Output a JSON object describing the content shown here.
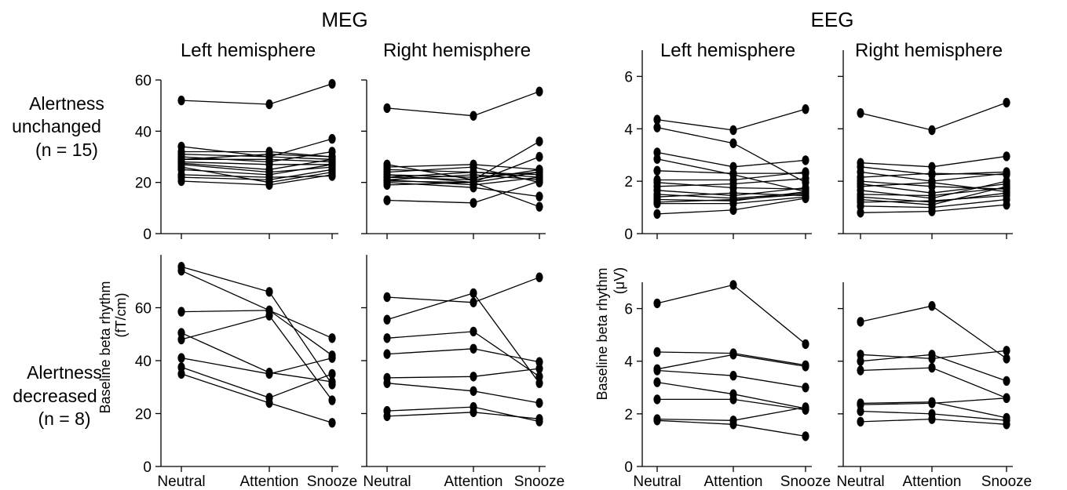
{
  "modalities": [
    {
      "label": "MEG",
      "ylabel": [
        "Baseline beta rhythm",
        "(fT/cm)"
      ]
    },
    {
      "label": "EEG",
      "ylabel": [
        "Baseline beta rhythm",
        "(μV)"
      ]
    }
  ],
  "hemispheres": [
    "Left hemisphere",
    "Right hemisphere"
  ],
  "groups": [
    {
      "lines": [
        "Alertness",
        "unchanged",
        "(n = 15)"
      ]
    },
    {
      "lines": [
        "Alertness",
        "decreased",
        "(n = 8)"
      ]
    }
  ],
  "conditions": [
    "Neutral",
    "Attention",
    "Snooze"
  ],
  "chart_data": [
    {
      "type": "line",
      "modality": "MEG",
      "hemisphere": "Left hemisphere",
      "group": "Alertness unchanged (n = 15)",
      "ylim": [
        0,
        60
      ],
      "yticks": [
        0,
        20,
        40,
        60
      ],
      "series": [
        {
          "values": [
            52,
            50.5,
            58.5
          ]
        },
        {
          "values": [
            34,
            30,
            37
          ]
        },
        {
          "values": [
            32,
            32,
            30
          ]
        },
        {
          "values": [
            31,
            30,
            29
          ]
        },
        {
          "values": [
            30,
            28,
            32
          ]
        },
        {
          "values": [
            29,
            31,
            30
          ]
        },
        {
          "values": [
            29,
            29,
            28
          ]
        },
        {
          "values": [
            28,
            27,
            27
          ]
        },
        {
          "values": [
            27.5,
            25,
            29
          ]
        },
        {
          "values": [
            27,
            24,
            26
          ]
        },
        {
          "values": [
            26,
            20,
            24
          ]
        },
        {
          "values": [
            25,
            23,
            27
          ]
        },
        {
          "values": [
            23,
            22,
            22.5
          ]
        },
        {
          "values": [
            22,
            21,
            25
          ]
        },
        {
          "values": [
            20.5,
            19,
            23
          ]
        }
      ]
    },
    {
      "type": "line",
      "modality": "MEG",
      "hemisphere": "Right hemisphere",
      "group": "Alertness unchanged (n = 15)",
      "ylim": [
        0,
        60
      ],
      "yticks": [
        0,
        20,
        40,
        60
      ],
      "series": [
        {
          "values": [
            49,
            46,
            55.5
          ]
        },
        {
          "values": [
            27,
            21,
            36
          ]
        },
        {
          "values": [
            26,
            27,
            25
          ]
        },
        {
          "values": [
            25,
            24,
            23
          ]
        },
        {
          "values": [
            24,
            26,
            20
          ]
        },
        {
          "values": [
            23,
            22,
            24
          ]
        },
        {
          "values": [
            23,
            20,
            30
          ]
        },
        {
          "values": [
            22,
            24,
            22
          ]
        },
        {
          "values": [
            22,
            21,
            25
          ]
        },
        {
          "values": [
            21,
            23,
            21
          ]
        },
        {
          "values": [
            21,
            19,
            22
          ]
        },
        {
          "values": [
            20.5,
            20,
            24
          ]
        },
        {
          "values": [
            20,
            18,
            14.5
          ]
        },
        {
          "values": [
            19,
            20,
            10.5
          ]
        },
        {
          "values": [
            13,
            12,
            20.5
          ]
        }
      ]
    },
    {
      "type": "line",
      "modality": "EEG",
      "hemisphere": "Left hemisphere",
      "group": "Alertness unchanged (n = 15)",
      "ylim": [
        0,
        7
      ],
      "yticks": [
        0,
        2,
        4,
        6
      ],
      "series": [
        {
          "values": [
            4.35,
            3.95,
            4.75
          ]
        },
        {
          "values": [
            4.05,
            3.45,
            1.95
          ]
        },
        {
          "values": [
            3.1,
            2.55,
            2.8
          ]
        },
        {
          "values": [
            2.85,
            2.25,
            1.6
          ]
        },
        {
          "values": [
            2.4,
            2.3,
            2.3
          ]
        },
        {
          "values": [
            2.05,
            2.05,
            2.35
          ]
        },
        {
          "values": [
            1.95,
            1.75,
            1.7
          ]
        },
        {
          "values": [
            1.8,
            1.9,
            2.1
          ]
        },
        {
          "values": [
            1.65,
            1.45,
            1.75
          ]
        },
        {
          "values": [
            1.5,
            1.35,
            1.55
          ]
        },
        {
          "values": [
            1.4,
            1.55,
            1.45
          ]
        },
        {
          "values": [
            1.3,
            1.25,
            1.6
          ]
        },
        {
          "values": [
            1.2,
            1.3,
            1.5
          ]
        },
        {
          "values": [
            1.15,
            1.15,
            1.4
          ]
        },
        {
          "values": [
            0.75,
            0.9,
            1.35
          ]
        }
      ]
    },
    {
      "type": "line",
      "modality": "EEG",
      "hemisphere": "Right hemisphere",
      "group": "Alertness unchanged (n = 15)",
      "ylim": [
        0,
        7
      ],
      "yticks": [
        0,
        2,
        4,
        6
      ],
      "series": [
        {
          "values": [
            4.6,
            3.95,
            5.0
          ]
        },
        {
          "values": [
            2.7,
            2.55,
            2.95
          ]
        },
        {
          "values": [
            2.55,
            2.25,
            2.35
          ]
        },
        {
          "values": [
            2.35,
            2.0,
            2.3
          ]
        },
        {
          "values": [
            2.15,
            2.3,
            2.25
          ]
        },
        {
          "values": [
            2.0,
            1.8,
            1.7
          ]
        },
        {
          "values": [
            1.9,
            1.55,
            1.9
          ]
        },
        {
          "values": [
            1.8,
            1.95,
            1.6
          ]
        },
        {
          "values": [
            1.65,
            1.35,
            2.0
          ]
        },
        {
          "values": [
            1.5,
            1.45,
            1.75
          ]
        },
        {
          "values": [
            1.4,
            1.2,
            1.55
          ]
        },
        {
          "values": [
            1.3,
            1.1,
            1.8
          ]
        },
        {
          "values": [
            1.2,
            1.25,
            1.45
          ]
        },
        {
          "values": [
            1.05,
            1.0,
            1.3
          ]
        },
        {
          "values": [
            0.8,
            0.85,
            1.1
          ]
        }
      ]
    },
    {
      "type": "line",
      "modality": "MEG",
      "hemisphere": "Left hemisphere",
      "group": "Alertness decreased (n = 8)",
      "ylim": [
        0,
        80
      ],
      "yticks": [
        0,
        20,
        40,
        60
      ],
      "series": [
        {
          "values": [
            75.5,
            66,
            31
          ]
        },
        {
          "values": [
            74,
            59,
            42
          ]
        },
        {
          "values": [
            58.5,
            59,
            48.5
          ]
        },
        {
          "values": [
            50.5,
            35.5,
            32
          ]
        },
        {
          "values": [
            48,
            57,
            25
          ]
        },
        {
          "values": [
            41,
            35,
            41
          ]
        },
        {
          "values": [
            37.5,
            26,
            35
          ]
        },
        {
          "values": [
            35,
            24,
            16.5
          ]
        }
      ]
    },
    {
      "type": "line",
      "modality": "MEG",
      "hemisphere": "Right hemisphere",
      "group": "Alertness decreased (n = 8)",
      "ylim": [
        0,
        80
      ],
      "yticks": [
        0,
        20,
        40,
        60
      ],
      "series": [
        {
          "values": [
            64,
            62,
            71.5
          ]
        },
        {
          "values": [
            55.5,
            65.5,
            31.5
          ]
        },
        {
          "values": [
            48.5,
            51,
            34
          ]
        },
        {
          "values": [
            42.5,
            44.5,
            39.5
          ]
        },
        {
          "values": [
            33.5,
            34,
            37
          ]
        },
        {
          "values": [
            31.5,
            28.5,
            24
          ]
        },
        {
          "values": [
            21,
            22.5,
            17
          ]
        },
        {
          "values": [
            19,
            20.5,
            18
          ]
        }
      ]
    },
    {
      "type": "line",
      "modality": "EEG",
      "hemisphere": "Left hemisphere",
      "group": "Alertness decreased (n = 8)",
      "ylim": [
        0,
        7
      ],
      "yticks": [
        0,
        2,
        4,
        6
      ],
      "series": [
        {
          "values": [
            6.2,
            6.9,
            4.65
          ]
        },
        {
          "values": [
            4.35,
            4.3,
            3.85
          ]
        },
        {
          "values": [
            3.7,
            4.25,
            3.8
          ]
        },
        {
          "values": [
            3.65,
            3.45,
            3.0
          ]
        },
        {
          "values": [
            3.2,
            2.75,
            2.2
          ]
        },
        {
          "values": [
            2.55,
            2.55,
            2.15
          ]
        },
        {
          "values": [
            1.8,
            1.75,
            2.25
          ]
        },
        {
          "values": [
            1.75,
            1.6,
            1.15
          ]
        }
      ]
    },
    {
      "type": "line",
      "modality": "EEG",
      "hemisphere": "Right hemisphere",
      "group": "Alertness decreased (n = 8)",
      "ylim": [
        0,
        7
      ],
      "yticks": [
        0,
        2,
        4,
        6
      ],
      "series": [
        {
          "values": [
            5.5,
            6.1,
            4.1
          ]
        },
        {
          "values": [
            4.25,
            4.1,
            4.4
          ]
        },
        {
          "values": [
            4.0,
            4.25,
            3.25
          ]
        },
        {
          "values": [
            3.65,
            3.75,
            2.6
          ]
        },
        {
          "values": [
            2.4,
            2.45,
            1.85
          ]
        },
        {
          "values": [
            2.35,
            2.4,
            2.6
          ]
        },
        {
          "values": [
            2.1,
            2.0,
            1.75
          ]
        },
        {
          "values": [
            1.7,
            1.8,
            1.6
          ]
        }
      ]
    }
  ]
}
